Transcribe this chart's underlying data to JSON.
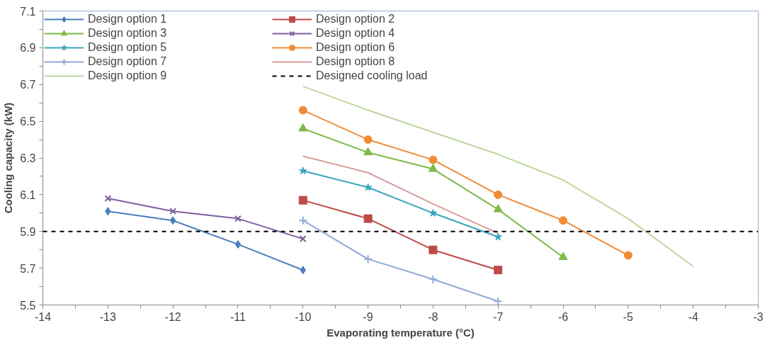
{
  "chart_data": {
    "type": "line",
    "xlabel": "Evaporating temperature (°C)",
    "ylabel": "Cooling capacity (kW)",
    "xlim": [
      -14,
      -3
    ],
    "ylim": [
      5.5,
      7.1
    ],
    "xticks": [
      -14,
      {
        "value": -13.5,
        "label": null
      },
      -13,
      {
        "value": -12.5,
        "label": null
      },
      -12,
      {
        "value": -11.5,
        "label": null
      },
      -11,
      {
        "value": -10.5,
        "label": null
      },
      -10,
      {
        "value": -9.5,
        "label": null
      },
      -9,
      {
        "value": -8.5,
        "label": null
      },
      -8,
      {
        "value": -7.5,
        "label": null
      },
      -7,
      {
        "value": -6.5,
        "label": null
      },
      -6,
      {
        "value": -5.5,
        "label": null
      },
      -5,
      {
        "value": -4.5,
        "label": null
      },
      -4,
      {
        "value": -3.5,
        "label": null
      },
      -3
    ],
    "yticks": [
      5.5,
      {
        "value": 5.6,
        "label": null
      },
      5.7,
      {
        "value": 5.8,
        "label": null
      },
      5.9,
      {
        "value": 6.0,
        "label": null
      },
      6.1,
      {
        "value": 6.2,
        "label": null
      },
      6.3,
      {
        "value": 6.4,
        "label": null
      },
      6.5,
      {
        "value": 6.6,
        "label": null
      },
      6.7,
      {
        "value": 6.8,
        "label": null
      },
      6.9,
      {
        "value": 7.0,
        "label": null
      },
      7.1
    ],
    "grid": false,
    "legend": "top left",
    "line_style": "solid",
    "series": [
      {
        "name": "Design option 1",
        "color": "#4a7ebb",
        "marker": "diamond",
        "x": [
          -13,
          -12,
          -11,
          -10
        ],
        "values": [
          6.01,
          5.96,
          5.83,
          5.69
        ]
      },
      {
        "name": "Design option 2",
        "color": "#be4b48",
        "marker": "square",
        "x": [
          -10,
          -9,
          -8,
          -7
        ],
        "values": [
          6.07,
          5.97,
          5.8,
          5.69
        ]
      },
      {
        "name": "Design option 3",
        "color": "#7eb94a",
        "marker": "triangle",
        "x": [
          -10,
          -9,
          -8,
          -7,
          -6
        ],
        "values": [
          6.46,
          6.33,
          6.24,
          6.02,
          5.76
        ]
      },
      {
        "name": "Design option 4",
        "color": "#7d5fa0",
        "marker": "x",
        "x": [
          -13,
          -12,
          -11,
          -10
        ],
        "values": [
          6.08,
          6.01,
          5.97,
          5.86
        ]
      },
      {
        "name": "Design option 5",
        "color": "#3aa5bd",
        "marker": "star",
        "x": [
          -10,
          -9,
          -8,
          -7
        ],
        "values": [
          6.23,
          6.14,
          6.0,
          5.87
        ]
      },
      {
        "name": "Design option 6",
        "color": "#f08b36",
        "marker": "circle",
        "x": [
          -10,
          -9,
          -8,
          -7,
          -6,
          -5
        ],
        "values": [
          6.56,
          6.4,
          6.29,
          6.1,
          5.96,
          5.77
        ]
      },
      {
        "name": "Design option 7",
        "color": "#92a9d8",
        "marker": "cross",
        "x": [
          -10,
          -9,
          -8,
          -7
        ],
        "values": [
          5.96,
          5.75,
          5.64,
          5.52
        ]
      },
      {
        "name": "Design option 8",
        "color": "#dc9a99",
        "marker": "none",
        "x": [
          -10,
          -9,
          -8,
          -7
        ],
        "values": [
          6.31,
          6.22,
          6.05,
          5.89
        ]
      },
      {
        "name": "Design option 9",
        "color": "#bfd6a0",
        "marker": "none",
        "x": [
          -10,
          -9,
          -8,
          -7,
          -6,
          -5,
          -4
        ],
        "values": [
          6.69,
          6.56,
          6.44,
          6.32,
          6.18,
          5.97,
          5.71
        ]
      }
    ],
    "ref_lines": [
      {
        "axis": "y",
        "value": 5.9,
        "label": "Designed cooling load",
        "color": "#000000",
        "line_style": "dashed"
      }
    ]
  }
}
